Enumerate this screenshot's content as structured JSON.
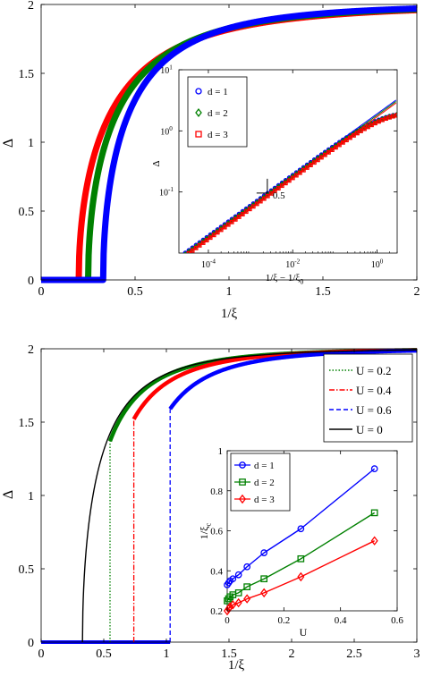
{
  "chart_data": [
    {
      "type": "line",
      "title": "",
      "xlabel": "1/ξ",
      "ylabel": "Δ",
      "xlim": [
        0,
        2
      ],
      "ylim": [
        0,
        2
      ],
      "xticks": [
        "0",
        "0.5",
        "1",
        "1.5",
        "2"
      ],
      "yticks": [
        "0",
        "0.5",
        "1",
        "1.5",
        "2"
      ],
      "grid": false,
      "series": [
        {
          "name": "d = 1",
          "color": "#0000ff",
          "xc": 0.33,
          "A": 3.6
        },
        {
          "name": "d = 2",
          "color": "#008000",
          "xc": 0.25,
          "A": 3.2
        },
        {
          "name": "d = 3",
          "color": "#ff0000",
          "xc": 0.2,
          "A": 2.9
        }
      ],
      "inset": {
        "type": "line",
        "xscale": "log",
        "yscale": "log",
        "xlabel": "1/ξ − 1/ξ",
        "xlabel_sub": "0",
        "ylabel": "Δ",
        "xlim": [
          2e-05,
          3
        ],
        "ylim": [
          0.01,
          10
        ],
        "xticks": [
          {
            "base": "10",
            "exp": "-4"
          },
          {
            "base": "10",
            "exp": "-2"
          },
          {
            "base": "10",
            "exp": "0"
          }
        ],
        "yticks": [
          {
            "base": "10",
            "exp": "-1"
          },
          {
            "base": "10",
            "exp": "0"
          },
          {
            "base": "10",
            "exp": "1"
          }
        ],
        "slope_label": "0.5",
        "legend": [
          "d = 1",
          "d = 2",
          "d = 3"
        ],
        "legend_position": "top-left",
        "series": [
          {
            "name": "d = 1",
            "color": "#0000ff",
            "marker": "circle",
            "coef": 1.9
          },
          {
            "name": "d = 2",
            "color": "#008000",
            "marker": "diamond",
            "coef": 1.8
          },
          {
            "name": "d = 3",
            "color": "#ff0000",
            "marker": "square",
            "coef": 1.7
          }
        ]
      }
    },
    {
      "type": "line",
      "title": "",
      "xlabel": "1/ξ",
      "ylabel": "Δ",
      "xlim": [
        0,
        3
      ],
      "ylim": [
        0,
        2
      ],
      "xticks": [
        "0",
        "0.5",
        "1",
        "1.5",
        "2",
        "2.5",
        "3"
      ],
      "yticks": [
        "0",
        "0.5",
        "1",
        "1.5",
        "2"
      ],
      "grid": false,
      "legend_position": "top-right",
      "series": [
        {
          "name": "U = 0.2",
          "color": "#008000",
          "style": "dotted",
          "xc": 0.55,
          "jump": 1.37
        },
        {
          "name": "U = 0.4",
          "color": "#ff0000",
          "style": "dashdot",
          "xc": 0.74,
          "jump": 1.52
        },
        {
          "name": "U = 0.6",
          "color": "#0000ff",
          "style": "dashed",
          "xc": 1.03,
          "jump": 1.59
        },
        {
          "name": "U = 0",
          "color": "#000000",
          "style": "solid",
          "xc": 0.33,
          "jump": 0
        }
      ],
      "inset": {
        "type": "line",
        "xlabel": "U",
        "ylabel": "1/ξ",
        "ylabel_sub": "c",
        "xlim": [
          0,
          0.6
        ],
        "ylim": [
          0.2,
          1.0
        ],
        "xticks": [
          "0",
          "0.2",
          "0.4",
          "0.6"
        ],
        "yticks": [
          "0.2",
          "0.4",
          "0.6",
          "0.8",
          "1"
        ],
        "legend_position": "top-left",
        "series": [
          {
            "name": "d = 1",
            "color": "#0000ff",
            "marker": "circle",
            "x": [
              0,
              0.005,
              0.01,
              0.02,
              0.04,
              0.07,
              0.13,
              0.26,
              0.52
            ],
            "y": [
              0.33,
              0.34,
              0.35,
              0.36,
              0.38,
              0.42,
              0.49,
              0.61,
              0.91
            ]
          },
          {
            "name": "d = 2",
            "color": "#008000",
            "marker": "square",
            "x": [
              0,
              0.005,
              0.01,
              0.02,
              0.04,
              0.07,
              0.13,
              0.26,
              0.52
            ],
            "y": [
              0.25,
              0.26,
              0.27,
              0.28,
              0.29,
              0.32,
              0.36,
              0.46,
              0.69
            ]
          },
          {
            "name": "d = 3",
            "color": "#ff0000",
            "marker": "diamond",
            "x": [
              0,
              0.005,
              0.01,
              0.02,
              0.04,
              0.07,
              0.13,
              0.26,
              0.52
            ],
            "y": [
              0.2,
              0.21,
              0.22,
              0.23,
              0.24,
              0.26,
              0.29,
              0.37,
              0.55
            ]
          }
        ]
      }
    }
  ]
}
